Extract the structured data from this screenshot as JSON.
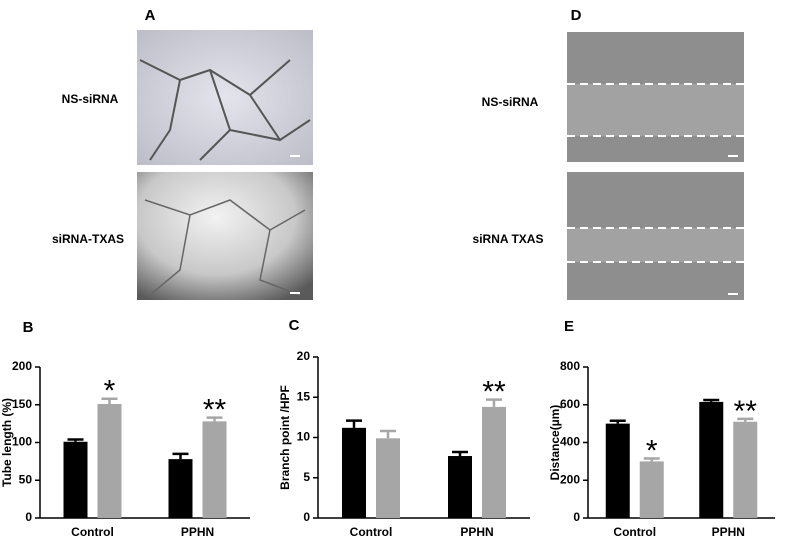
{
  "panels": [
    {
      "label": "A",
      "rows": [
        "NS-siRNA",
        "siRNA-TXAS"
      ]
    },
    {
      "label": "D",
      "rows": [
        "NS-siRNA",
        "siRNA TXAS"
      ]
    }
  ],
  "chart_data": [
    {
      "type": "bar",
      "label": "B",
      "ylabel": "Tube length (%)",
      "categories": [
        "Control",
        "PPHN"
      ],
      "series": [
        {
          "color": "#000000",
          "values": [
            101,
            78
          ],
          "errors": [
            3,
            7
          ]
        },
        {
          "color": "#a6a6a6",
          "values": [
            151,
            128
          ],
          "errors": [
            7,
            5
          ],
          "annotations": [
            "*",
            "**"
          ]
        }
      ],
      "ylim": [
        0,
        200
      ],
      "yticks": [
        0,
        50,
        100,
        150,
        200
      ]
    },
    {
      "type": "bar",
      "label": "C",
      "ylabel": "Branch point /HPF",
      "categories": [
        "Control",
        "PPHN"
      ],
      "series": [
        {
          "color": "#000000",
          "values": [
            11.2,
            7.7
          ],
          "errors": [
            0.9,
            0.5
          ]
        },
        {
          "color": "#a6a6a6",
          "values": [
            9.9,
            13.8
          ],
          "errors": [
            0.9,
            0.9
          ],
          "annotations": [
            null,
            "**"
          ]
        }
      ],
      "ylim": [
        0,
        20
      ],
      "yticks": [
        0,
        5,
        10,
        15,
        20
      ]
    },
    {
      "type": "bar",
      "label": "E",
      "ylabel": "Distance(µm)",
      "categories": [
        "Control",
        "PPHN"
      ],
      "series": [
        {
          "color": "#000000",
          "values": [
            500,
            615
          ],
          "errors": [
            15,
            10
          ]
        },
        {
          "color": "#a6a6a6",
          "values": [
            300,
            510
          ],
          "errors": [
            15,
            15
          ],
          "annotations": [
            "*",
            "**"
          ]
        }
      ],
      "ylim": [
        0,
        800
      ],
      "yticks": [
        0,
        200,
        400,
        600,
        800
      ]
    }
  ]
}
